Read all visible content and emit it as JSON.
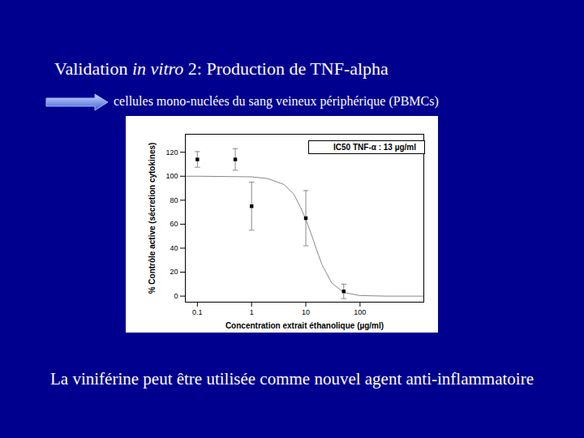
{
  "chart_data": {
    "type": "scatter",
    "x": [
      0.1,
      0.5,
      1,
      10,
      50
    ],
    "values": [
      114,
      114,
      75,
      65,
      4
    ],
    "errors": [
      6.5,
      9,
      20,
      23,
      6
    ],
    "color": "#000000",
    "marker": "square",
    "curve": {
      "x": [
        0.06,
        0.1,
        1,
        2,
        4,
        6,
        8,
        10,
        13,
        16,
        20,
        30,
        50,
        100,
        300,
        1500
      ],
      "values": [
        100,
        100,
        99.5,
        98,
        93,
        85,
        74,
        64,
        50,
        38,
        26,
        11,
        3,
        0.5,
        0,
        0
      ],
      "color": "#888888",
      "type": "line"
    },
    "log": "x",
    "xlim": [
      0.06,
      1500
    ],
    "xticks": [
      0.1,
      1,
      10,
      100
    ],
    "ylim": [
      -5,
      135
    ],
    "yticks": [
      0,
      20,
      40,
      60,
      80,
      100,
      120
    ],
    "x_label": "Concentration extrait éthanolique (µg/ml)",
    "y_label": "% Contrôle active (sécretion cytokines)",
    "annotations": [
      "IC50 TNF-α : 13 µg/ml"
    ],
    "grid": false
  },
  "slide": {
    "title_parts": [
      "Validation ",
      "in vitro",
      " 2: Production de TNF-alpha"
    ],
    "subtitle": "cellules mono-nuclées du sang veineux périphérique (PBMCs)",
    "caption": "La viniférine peut être utilisée comme nouvel agent anti-inflammatoire"
  }
}
